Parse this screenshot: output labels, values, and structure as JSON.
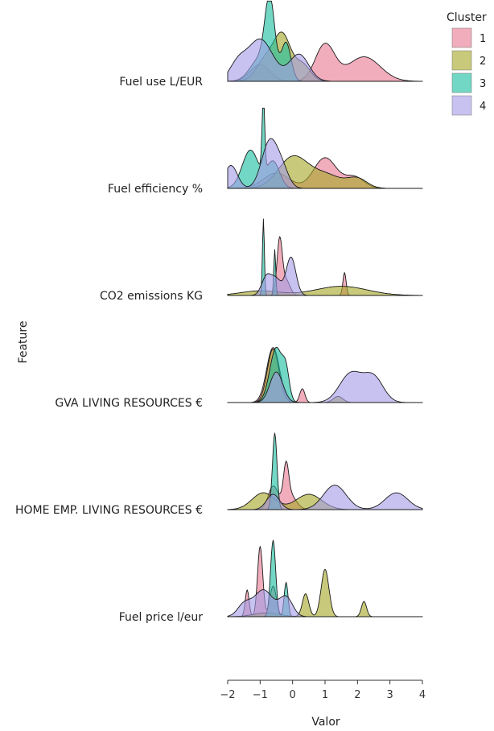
{
  "chart_data": {
    "type": "ridgeline",
    "xlabel": "Valor",
    "ylabel": "Feature",
    "xlim": [
      -2,
      4
    ],
    "x_ticks": [
      "-2",
      "-1",
      "0",
      "1",
      "2",
      "3",
      "4"
    ],
    "legend": {
      "title": "Cluster",
      "position": "top-right"
    },
    "series_colors": {
      "1": "#e87a93",
      "2": "#a7a829",
      "3": "#1bbfa2",
      "4": "#a59ce6"
    },
    "features": [
      {
        "label": "Fuel use L/EUR",
        "clusters": [
          {
            "cluster": "1",
            "peaks": [
              [
                -1.0,
                0.22,
                0.3
              ],
              [
                1.0,
                0.48,
                0.3
              ],
              [
                2.2,
                0.32,
                0.5
              ]
            ]
          },
          {
            "cluster": "2",
            "peaks": [
              [
                -0.8,
                0.3,
                0.3
              ],
              [
                -0.3,
                0.55,
                0.25
              ],
              [
                0.3,
                0.22,
                0.25
              ]
            ]
          },
          {
            "cluster": "3",
            "peaks": [
              [
                -0.7,
                0.95,
                0.15
              ],
              [
                -0.2,
                0.5,
                0.15
              ],
              [
                -1.0,
                0.3,
                0.3
              ]
            ]
          },
          {
            "cluster": "4",
            "peaks": [
              [
                -1.7,
                0.2,
                0.25
              ],
              [
                -1.0,
                0.55,
                0.4
              ],
              [
                0.2,
                0.35,
                0.3
              ]
            ]
          }
        ]
      },
      {
        "label": "Fuel efficiency %",
        "clusters": [
          {
            "cluster": "1",
            "peaks": [
              [
                -0.5,
                0.2,
                0.4
              ],
              [
                1.0,
                0.4,
                0.35
              ],
              [
                1.9,
                0.15,
                0.3
              ]
            ]
          },
          {
            "cluster": "2",
            "peaks": [
              [
                0.0,
                0.4,
                0.45
              ],
              [
                1.0,
                0.18,
                0.5
              ],
              [
                2.0,
                0.12,
                0.3
              ]
            ]
          },
          {
            "cluster": "3",
            "peaks": [
              [
                -1.3,
                0.5,
                0.25
              ],
              [
                -0.9,
                1.0,
                0.04
              ],
              [
                -0.6,
                0.35,
                0.2
              ]
            ]
          },
          {
            "cluster": "4",
            "peaks": [
              [
                -1.9,
                0.3,
                0.2
              ],
              [
                -0.7,
                0.62,
                0.25
              ],
              [
                -0.3,
                0.2,
                0.2
              ]
            ]
          }
        ]
      },
      {
        "label": "CO2 emissions KG",
        "clusters": [
          {
            "cluster": "1",
            "peaks": [
              [
                -0.4,
                0.72,
                0.08
              ],
              [
                -0.2,
                0.2,
                0.12
              ],
              [
                1.6,
                0.3,
                0.05
              ]
            ]
          },
          {
            "cluster": "2",
            "peaks": [
              [
                -1.0,
                0.06,
                0.6
              ],
              [
                1.5,
                0.12,
                0.8
              ]
            ]
          },
          {
            "cluster": "3",
            "peaks": [
              [
                -0.9,
                1.0,
                0.03
              ],
              [
                -0.55,
                0.6,
                0.03
              ]
            ]
          },
          {
            "cluster": "4",
            "peaks": [
              [
                -0.8,
                0.25,
                0.15
              ],
              [
                -0.5,
                0.2,
                0.15
              ],
              [
                -0.05,
                0.5,
                0.15
              ]
            ]
          }
        ]
      },
      {
        "label": "GVA LIVING RESOURCES €",
        "clusters": [
          {
            "cluster": "1",
            "peaks": [
              [
                -0.6,
                0.72,
                0.2
              ],
              [
                0.3,
                0.18,
                0.08
              ]
            ]
          },
          {
            "cluster": "2",
            "peaks": [
              [
                -0.6,
                0.7,
                0.18
              ],
              [
                1.4,
                0.08,
                0.15
              ]
            ]
          },
          {
            "cluster": "3",
            "peaks": [
              [
                -0.5,
                0.72,
                0.2
              ],
              [
                -0.2,
                0.3,
                0.1
              ]
            ]
          },
          {
            "cluster": "4",
            "peaks": [
              [
                -0.5,
                0.4,
                0.2
              ],
              [
                1.8,
                0.38,
                0.35
              ],
              [
                2.5,
                0.32,
                0.3
              ]
            ]
          }
        ]
      },
      {
        "label": "HOME EMP. LIVING RESOURCES €",
        "clusters": [
          {
            "cluster": "1",
            "peaks": [
              [
                -0.2,
                0.45,
                0.08
              ],
              [
                -0.6,
                0.3,
                0.15
              ],
              [
                -0.1,
                0.2,
                0.2
              ]
            ]
          },
          {
            "cluster": "2",
            "peaks": [
              [
                -0.9,
                0.22,
                0.35
              ],
              [
                0.5,
                0.2,
                0.4
              ]
            ]
          },
          {
            "cluster": "3",
            "peaks": [
              [
                -0.55,
                1.0,
                0.07
              ]
            ]
          },
          {
            "cluster": "4",
            "peaks": [
              [
                -0.6,
                0.2,
                0.2
              ],
              [
                1.3,
                0.32,
                0.35
              ],
              [
                3.2,
                0.22,
                0.35
              ]
            ]
          }
        ]
      },
      {
        "label": "Fuel price l/eur",
        "clusters": [
          {
            "cluster": "1",
            "peaks": [
              [
                -1.4,
                0.35,
                0.06
              ],
              [
                -1.0,
                0.92,
                0.08
              ],
              [
                -0.6,
                0.4,
                0.1
              ]
            ]
          },
          {
            "cluster": "2",
            "peaks": [
              [
                0.4,
                0.3,
                0.1
              ],
              [
                1.0,
                0.62,
                0.12
              ],
              [
                2.2,
                0.2,
                0.08
              ],
              [
                -0.8,
                0.05,
                0.4
              ]
            ]
          },
          {
            "cluster": "3",
            "peaks": [
              [
                -0.6,
                1.0,
                0.08
              ],
              [
                -0.2,
                0.45,
                0.06
              ]
            ]
          },
          {
            "cluster": "4",
            "peaks": [
              [
                -0.9,
                0.35,
                0.3
              ],
              [
                -0.2,
                0.25,
                0.2
              ],
              [
                -1.5,
                0.15,
                0.2
              ]
            ]
          }
        ]
      }
    ]
  }
}
